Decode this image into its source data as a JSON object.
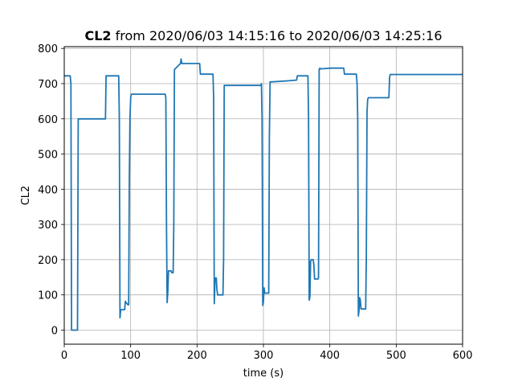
{
  "chart_data": {
    "type": "line",
    "title_bold": "CL2",
    "title_rest": " from 2020/06/03 14:15:16 to 2020/06/03 14:25:16",
    "xlabel": "time (s)",
    "ylabel": "CL2",
    "xlim": [
      0,
      600
    ],
    "ylim": [
      -40,
      805
    ],
    "xticks": [
      0,
      100,
      200,
      300,
      400,
      500,
      600
    ],
    "yticks": [
      0,
      100,
      200,
      300,
      400,
      500,
      600,
      700,
      800
    ],
    "grid": true,
    "colors": {
      "line": "#1f77b4",
      "grid": "#b0b0b0"
    },
    "series": [
      {
        "x": [
          0,
          9,
          10,
          11,
          20,
          21,
          62,
          63,
          82,
          83,
          84,
          85,
          91,
          92,
          93,
          96,
          97,
          98,
          99,
          100,
          101,
          104,
          105,
          152,
          153,
          154,
          155,
          156,
          157,
          161,
          162,
          164,
          165,
          166,
          175,
          176,
          177,
          204,
          205,
          206,
          224,
          225,
          226,
          227,
          228,
          229,
          230,
          231,
          232,
          239,
          240,
          241,
          242,
          296,
          297,
          298,
          299,
          300,
          301,
          302,
          308,
          309,
          310,
          311,
          312,
          330,
          331,
          350,
          351,
          367,
          368,
          369,
          370,
          371,
          372,
          375,
          376,
          377,
          382,
          383,
          384,
          385,
          386,
          387,
          402,
          403,
          420,
          421,
          422,
          439,
          440,
          441,
          442,
          443,
          444,
          445,
          446,
          447,
          453,
          454,
          455,
          456,
          457,
          458,
          470,
          471,
          489,
          490,
          491,
          600
        ],
        "y": [
          722,
          722,
          700,
          0,
          0,
          600,
          600,
          722,
          722,
          600,
          35,
          58,
          58,
          82,
          78,
          72,
          72,
          420,
          600,
          660,
          670,
          670,
          670,
          670,
          660,
          300,
          78,
          110,
          168,
          168,
          163,
          163,
          300,
          740,
          757,
          770,
          757,
          757,
          727,
          727,
          727,
          660,
          75,
          140,
          148,
          148,
          115,
          100,
          100,
          100,
          200,
          695,
          695,
          695,
          700,
          600,
          70,
          80,
          120,
          105,
          105,
          550,
          705,
          705,
          705,
          707,
          707,
          710,
          722,
          722,
          600,
          85,
          95,
          195,
          200,
          200,
          185,
          145,
          145,
          148,
          740,
          744,
          742,
          742,
          744,
          744,
          744,
          744,
          727,
          727,
          727,
          700,
          600,
          40,
          55,
          92,
          85,
          60,
          60,
          60,
          200,
          620,
          655,
          660,
          660,
          660,
          660,
          718,
          726,
          726
        ]
      }
    ]
  }
}
